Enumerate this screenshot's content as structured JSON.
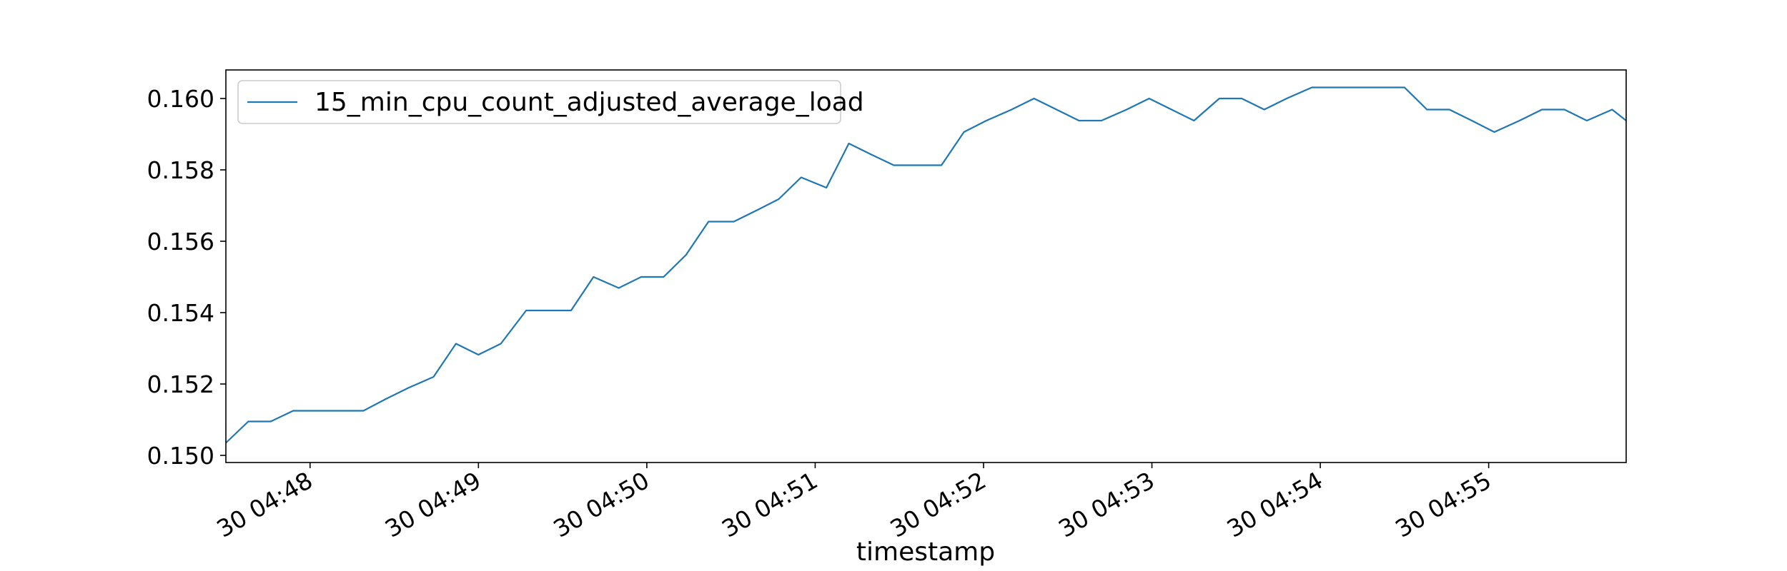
{
  "chart_data": {
    "type": "line",
    "title": "",
    "xlabel": "timestamp",
    "ylabel": "",
    "grid": false,
    "legend_position": "top-left",
    "x_range": [
      "30 04:47:30",
      "30 04:55:49"
    ],
    "ylim": [
      0.1498,
      0.1608
    ],
    "x_ticks": [
      "30 04:48",
      "30 04:49",
      "30 04:50",
      "30 04:51",
      "30 04:52",
      "30 04:53",
      "30 04:54",
      "30 04:55"
    ],
    "y_ticks": [
      "0.150",
      "0.152",
      "0.154",
      "0.156",
      "0.158",
      "0.160"
    ],
    "series": [
      {
        "name": "15_min_cpu_count_adjusted_average_load",
        "color": "#1f77b4",
        "x": [
          "30 04:47:30",
          "30 04:47:38",
          "30 04:47:46",
          "30 04:47:54",
          "30 04:48:02",
          "30 04:48:11",
          "30 04:48:19",
          "30 04:48:27",
          "30 04:48:35",
          "30 04:48:44",
          "30 04:48:52",
          "30 04:49:00",
          "30 04:49:08",
          "30 04:49:17",
          "30 04:49:25",
          "30 04:49:33",
          "30 04:49:41",
          "30 04:49:50",
          "30 04:49:58",
          "30 04:50:06",
          "30 04:50:14",
          "30 04:50:22",
          "30 04:50:31",
          "30 04:50:39",
          "30 04:50:47",
          "30 04:50:55",
          "30 04:51:04",
          "30 04:51:12",
          "30 04:51:20",
          "30 04:51:28",
          "30 04:51:37",
          "30 04:51:45",
          "30 04:51:53",
          "30 04:52:01",
          "30 04:52:10",
          "30 04:52:18",
          "30 04:52:26",
          "30 04:52:34",
          "30 04:52:42",
          "30 04:52:51",
          "30 04:52:59",
          "30 04:53:07",
          "30 04:53:15",
          "30 04:53:24",
          "30 04:53:32",
          "30 04:53:40",
          "30 04:53:48",
          "30 04:53:57",
          "30 04:54:05",
          "30 04:54:13",
          "30 04:54:21",
          "30 04:54:30",
          "30 04:54:38",
          "30 04:54:46",
          "30 04:54:54",
          "30 04:55:02",
          "30 04:55:11",
          "30 04:55:19",
          "30 04:55:27",
          "30 04:55:35",
          "30 04:55:44",
          "30 04:55:49"
        ],
        "values": [
          0.15035,
          0.15095,
          0.15095,
          0.15125,
          0.15125,
          0.15125,
          0.15125,
          0.15158,
          0.15189,
          0.1522,
          0.15313,
          0.15282,
          0.15313,
          0.15406,
          0.15406,
          0.15406,
          0.155,
          0.15469,
          0.155,
          0.155,
          0.15562,
          0.15655,
          0.15655,
          0.15686,
          0.15718,
          0.15779,
          0.1575,
          0.15874,
          0.15843,
          0.15813,
          0.15813,
          0.15813,
          0.15906,
          0.15938,
          0.15969,
          0.16,
          0.15969,
          0.15938,
          0.15938,
          0.15969,
          0.16,
          0.15969,
          0.15938,
          0.16,
          0.16,
          0.15969,
          0.16,
          0.16031,
          0.16031,
          0.16031,
          0.16031,
          0.16031,
          0.15969,
          0.15969,
          0.15938,
          0.15906,
          0.15938,
          0.15969,
          0.15969,
          0.15938,
          0.15969,
          0.15938
        ]
      }
    ]
  }
}
